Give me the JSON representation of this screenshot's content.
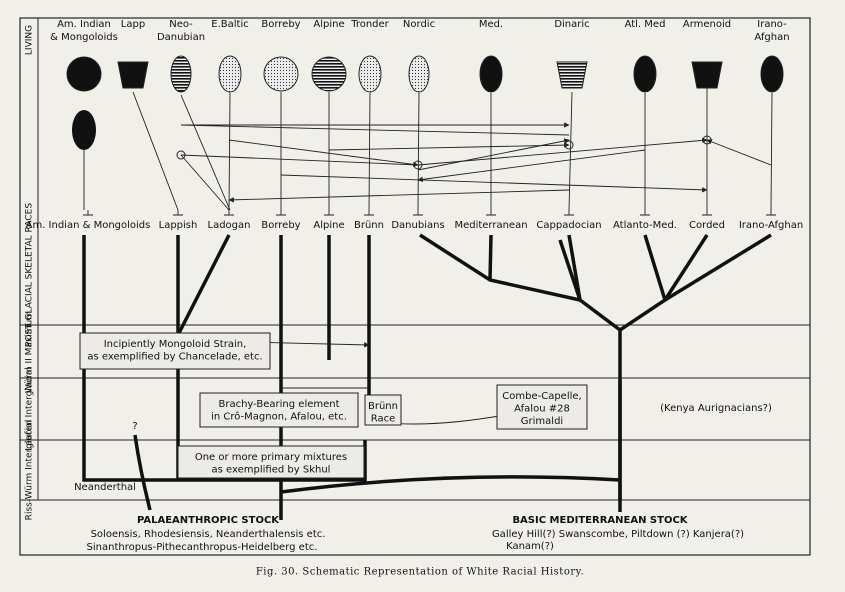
{
  "periods": [
    "LIVING",
    "POST GLACIAL SKELETAL RACES",
    "Würm II Maximum",
    "Laufen Interglacial",
    "Riss-Würm Interglacial"
  ],
  "living": [
    "Am. Indian & Mongoloids",
    "Lapp",
    "Neo-Danubian",
    "E.Baltic",
    "Borreby",
    "Alpine",
    "Tronder",
    "Nordic",
    "Med.",
    "Dinaric",
    "Atl. Med",
    "Armenoid",
    "Irano-Afghan"
  ],
  "post_glacial": [
    "Am. Indian & Mongoloids",
    "Lappish",
    "Ladogan",
    "Borreby",
    "Alpine",
    "Brünn",
    "Danubians",
    "Mediterranean",
    "Cappadocian",
    "Atlanto-Med.",
    "Corded",
    "Irano-Afghan"
  ],
  "boxes": {
    "chancelade": [
      "Incipiently Mongoloid Strain,",
      "as exemplified by Chancelade, etc."
    ],
    "cro_magnon": [
      "Brachy-Bearing element",
      "in Crô-Magnon, Afalou, etc."
    ],
    "brunn": [
      "Brünn",
      "Race"
    ],
    "combe_capelle": [
      "Combe-Capelle,",
      "Afalou #28",
      "Grimaldi"
    ],
    "skhul": [
      "One or more primary mixtures",
      "as exemplified by Skhul"
    ]
  },
  "notes": {
    "kenya": "(Kenya Aurignacians?)",
    "question": "?",
    "neanderthal": "Neanderthal"
  },
  "stocks": {
    "palaeanthropic": {
      "title": "PALAEANTHROPIC STOCK",
      "lines": [
        "Soloensis, Rhodesiensis, Neanderthalensis etc.",
        "Sinanthropus-Pithecanthropus-Heidelberg etc."
      ]
    },
    "mediterranean": {
      "title": "BASIC MEDITERRANEAN STOCK",
      "lines": [
        "Galley Hill(?) Swanscombe, Piltdown (?) Kanjera(?)",
        "Kanam(?)"
      ]
    }
  },
  "caption": "Fig. 30. Schematic Representation of White Racial History."
}
